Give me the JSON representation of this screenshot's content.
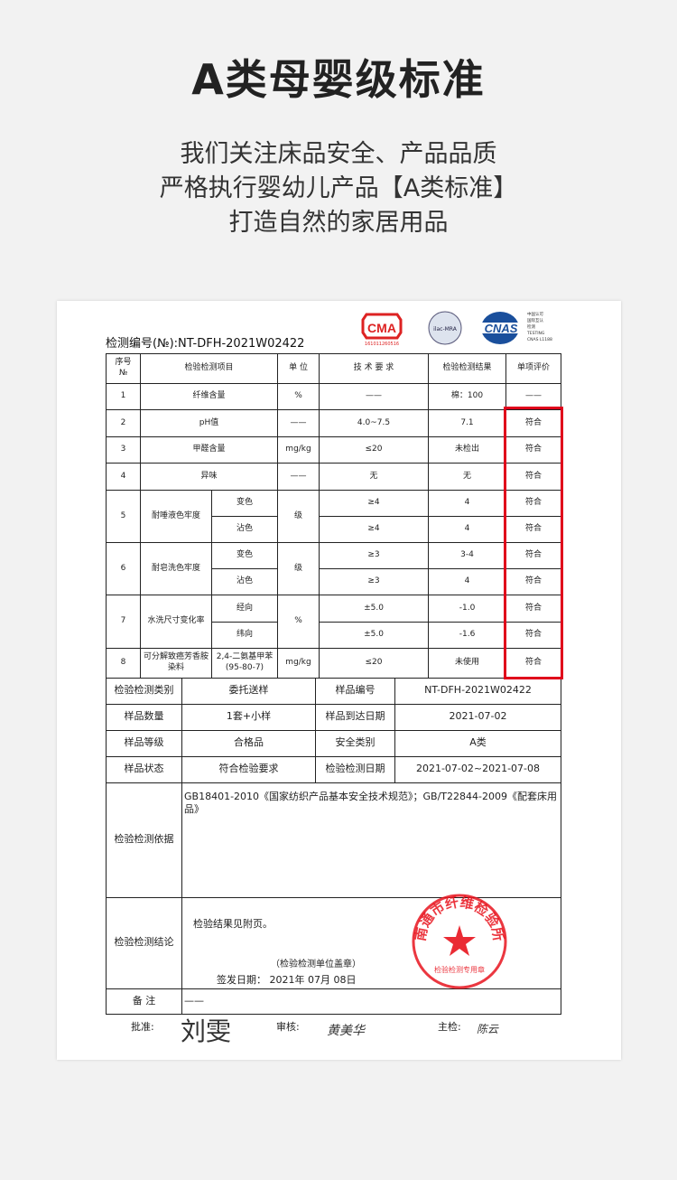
{
  "title": "A类母婴级标准",
  "subtitle_lines": [
    "我们关注床品安全、产品品质",
    "严格执行婴幼儿产品【A类标准】",
    "打造自然的家居用品"
  ],
  "report": {
    "number": "检测编号(№):NT-DFH-2021W02422",
    "logos": {
      "cma": "CMA",
      "cma_code": "161011260516",
      "ilac": "ilac-MRA",
      "cnas": "CNAS",
      "cnas_text": [
        "中国认可",
        "国际互认",
        "检测",
        "TESTING",
        "CNAS L1188"
      ]
    },
    "headers": [
      "序号\n№",
      "检验检测项目",
      "单 位",
      "技 术 要 求",
      "检验检测结果",
      "单项评价"
    ],
    "rows": [
      {
        "no": "1",
        "item": "纤维含量",
        "unit": "%",
        "req": "——",
        "result": "棉：100",
        "eval": "——"
      },
      {
        "no": "2",
        "item": "pH值",
        "unit": "——",
        "req": "4.0~7.5",
        "result": "7.1",
        "eval": "符合"
      },
      {
        "no": "3",
        "item": "甲醛含量",
        "unit": "mg/kg",
        "req": "≤20",
        "result": "未检出",
        "eval": "符合"
      },
      {
        "no": "4",
        "item": "异味",
        "unit": "——",
        "req": "无",
        "result": "无",
        "eval": "符合"
      },
      {
        "no": "5",
        "item": "耐唾液色牢度",
        "unit": "级",
        "subs": [
          {
            "sub": "变色",
            "req": "≥4",
            "result": "4",
            "eval": "符合"
          },
          {
            "sub": "沾色",
            "req": "≥4",
            "result": "4",
            "eval": "符合"
          }
        ]
      },
      {
        "no": "6",
        "item": "耐皂洗色牢度",
        "unit": "级",
        "subs": [
          {
            "sub": "变色",
            "req": "≥3",
            "result": "3-4",
            "eval": "符合"
          },
          {
            "sub": "沾色",
            "req": "≥3",
            "result": "4",
            "eval": "符合"
          }
        ]
      },
      {
        "no": "7",
        "item": "水洗尺寸变化率",
        "unit": "%",
        "subs": [
          {
            "sub": "经向",
            "req": "±5.0",
            "result": "-1.0",
            "eval": "符合"
          },
          {
            "sub": "纬向",
            "req": "±5.0",
            "result": "-1.6",
            "eval": "符合"
          }
        ]
      },
      {
        "no": "8",
        "item": "可分解致癌芳香胺染料",
        "sub": "2,4-二氨基甲苯(95-80-7)",
        "unit": "mg/kg",
        "req": "≤20",
        "result": "未使用",
        "eval": "符合"
      }
    ],
    "info": [
      {
        "l1": "检验检测类别",
        "v1": "委托送样",
        "l2": "样品编号",
        "v2": "NT-DFH-2021W02422"
      },
      {
        "l1": "样品数量",
        "v1": "1套+小样",
        "l2": "样品到达日期",
        "v2": "2021-07-02"
      },
      {
        "l1": "样品等级",
        "v1": "合格品",
        "l2": "安全类别",
        "v2": "A类"
      },
      {
        "l1": "样品状态",
        "v1": "符合检验要求",
        "l2": "检验检测日期",
        "v2": "2021-07-02~2021-07-08"
      }
    ],
    "basis_label": "检验检测依据",
    "basis": "GB18401-2010《国家纺织产品基本安全技术规范》；GB/T22844-2009《配套床用品》",
    "conclusion_label": "检验检测结论",
    "conclusion": "检验结果见附页。",
    "stamp_note": "（检验检测单位盖章）",
    "issue_date": "签发日期： 2021年 07月 08日",
    "stamp_text": "南通市纤维检验所",
    "stamp_sub": "检验检测专用章",
    "remark_label": "备 注",
    "remark": "——",
    "signatures": {
      "approve_label": "批准:",
      "approve": "刘雯",
      "review_label": "审核:",
      "review": "黄美华",
      "inspector_label": "主检:",
      "inspector": "陈云"
    }
  },
  "colors": {
    "highlight": "#e0001b",
    "stamp": "#e8141e"
  }
}
